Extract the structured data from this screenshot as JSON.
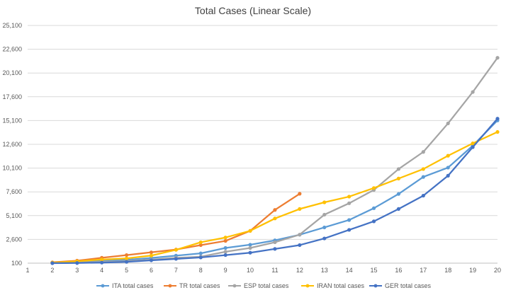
{
  "chart_data": {
    "type": "line",
    "title": "Total Cases (Linear Scale)",
    "xlabel": "",
    "ylabel": "",
    "x": [
      1,
      2,
      3,
      4,
      5,
      6,
      7,
      8,
      9,
      10,
      11,
      12,
      13,
      14,
      15,
      16,
      17,
      18,
      19,
      20
    ],
    "xlim": [
      1,
      20
    ],
    "ylim": [
      100,
      25100
    ],
    "yticks": [
      100,
      2600,
      5100,
      7600,
      10100,
      12600,
      15100,
      17600,
      20100,
      22600,
      25100
    ],
    "ytick_labels": [
      "100",
      "2,600",
      "5,100",
      "7,600",
      "10,100",
      "12,600",
      "15,100",
      "17,600",
      "20,100",
      "22,600",
      "25,100"
    ],
    "xtick_labels": [
      "1",
      "2",
      "3",
      "4",
      "5",
      "6",
      "7",
      "8",
      "9",
      "10",
      "11",
      "12",
      "13",
      "14",
      "15",
      "16",
      "17",
      "18",
      "19",
      "20"
    ],
    "grid": true,
    "legend_position": "bottom",
    "series": [
      {
        "name": "ITA total cases",
        "color": "#5B9BD5",
        "values": [
          null,
          150,
          220,
          320,
          450,
          650,
          890,
          1130,
          1700,
          2040,
          2500,
          3090,
          3860,
          4640,
          5880,
          7380,
          9170,
          10150,
          12460,
          15110
        ]
      },
      {
        "name": "TR total cases",
        "color": "#ED7D31",
        "values": [
          null,
          190,
          360,
          670,
          950,
          1240,
          1530,
          2000,
          2440,
          3500,
          5700,
          7400,
          null,
          null,
          null,
          null,
          null,
          null,
          null,
          null
        ]
      },
      {
        "name": "ESP total cases",
        "color": "#A5A5A5",
        "values": [
          null,
          110,
          170,
          240,
          310,
          470,
          660,
          780,
          1300,
          1700,
          2300,
          3100,
          5200,
          6400,
          7800,
          10000,
          11800,
          14800,
          18100,
          21700
        ]
      },
      {
        "name": "IRAN total cases",
        "color": "#FFC000",
        "values": [
          null,
          160,
          300,
          480,
          600,
          900,
          1500,
          2300,
          2800,
          3500,
          4800,
          5800,
          6500,
          7100,
          8000,
          9000,
          10000,
          11400,
          12700,
          13900
        ]
      },
      {
        "name": "GER total cases",
        "color": "#4472C4",
        "values": [
          null,
          100,
          120,
          160,
          240,
          400,
          550,
          700,
          950,
          1200,
          1600,
          2000,
          2700,
          3600,
          4500,
          5800,
          7200,
          9300,
          12300,
          15300
        ]
      }
    ]
  }
}
